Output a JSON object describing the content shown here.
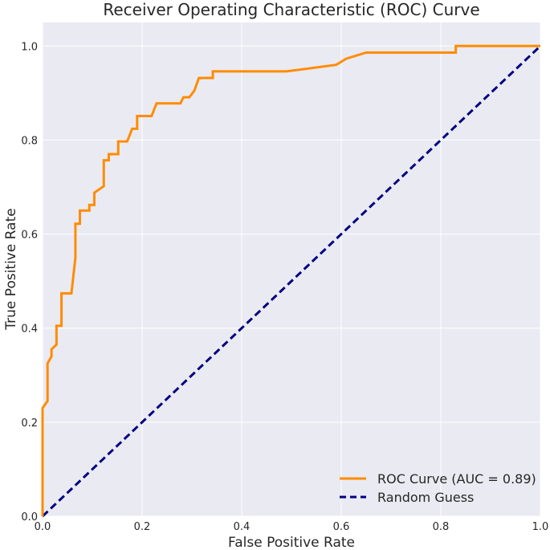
{
  "chart_data": {
    "type": "line",
    "title": "Receiver Operating Characteristic (ROC) Curve",
    "xlabel": "False Positive Rate",
    "ylabel": "True Positive Rate",
    "xlim": [
      0.0,
      1.0
    ],
    "ylim": [
      0.0,
      1.05
    ],
    "xticks": [
      "0.0",
      "0.2",
      "0.4",
      "0.6",
      "0.8",
      "1.0"
    ],
    "yticks": [
      "0.0",
      "0.2",
      "0.4",
      "0.6",
      "0.8",
      "1.0"
    ],
    "grid": true,
    "legend_position": "lower-right",
    "series": [
      {
        "name": "ROC Curve (AUC = 0.89)",
        "color": "#ff8c00",
        "style": "solid",
        "points": [
          [
            0.0,
            0.0
          ],
          [
            0.0,
            0.23
          ],
          [
            0.01,
            0.245
          ],
          [
            0.01,
            0.325
          ],
          [
            0.018,
            0.34
          ],
          [
            0.018,
            0.355
          ],
          [
            0.028,
            0.365
          ],
          [
            0.028,
            0.405
          ],
          [
            0.038,
            0.405
          ],
          [
            0.038,
            0.474
          ],
          [
            0.058,
            0.474
          ],
          [
            0.066,
            0.55
          ],
          [
            0.066,
            0.622
          ],
          [
            0.075,
            0.622
          ],
          [
            0.075,
            0.65
          ],
          [
            0.094,
            0.65
          ],
          [
            0.094,
            0.662
          ],
          [
            0.104,
            0.662
          ],
          [
            0.104,
            0.688
          ],
          [
            0.123,
            0.702
          ],
          [
            0.123,
            0.757
          ],
          [
            0.133,
            0.757
          ],
          [
            0.133,
            0.77
          ],
          [
            0.152,
            0.77
          ],
          [
            0.152,
            0.797
          ],
          [
            0.17,
            0.797
          ],
          [
            0.18,
            0.824
          ],
          [
            0.19,
            0.824
          ],
          [
            0.19,
            0.851
          ],
          [
            0.219,
            0.851
          ],
          [
            0.229,
            0.878
          ],
          [
            0.277,
            0.878
          ],
          [
            0.283,
            0.891
          ],
          [
            0.295,
            0.891
          ],
          [
            0.305,
            0.905
          ],
          [
            0.314,
            0.932
          ],
          [
            0.342,
            0.932
          ],
          [
            0.342,
            0.946
          ],
          [
            0.49,
            0.946
          ],
          [
            0.59,
            0.96
          ],
          [
            0.61,
            0.973
          ],
          [
            0.65,
            0.986
          ],
          [
            0.83,
            0.986
          ],
          [
            0.83,
            1.0
          ],
          [
            1.0,
            1.0
          ]
        ]
      },
      {
        "name": "Random Guess",
        "color": "#000080",
        "style": "dashed",
        "points": [
          [
            0.0,
            0.0
          ],
          [
            1.0,
            1.0
          ]
        ]
      }
    ]
  }
}
